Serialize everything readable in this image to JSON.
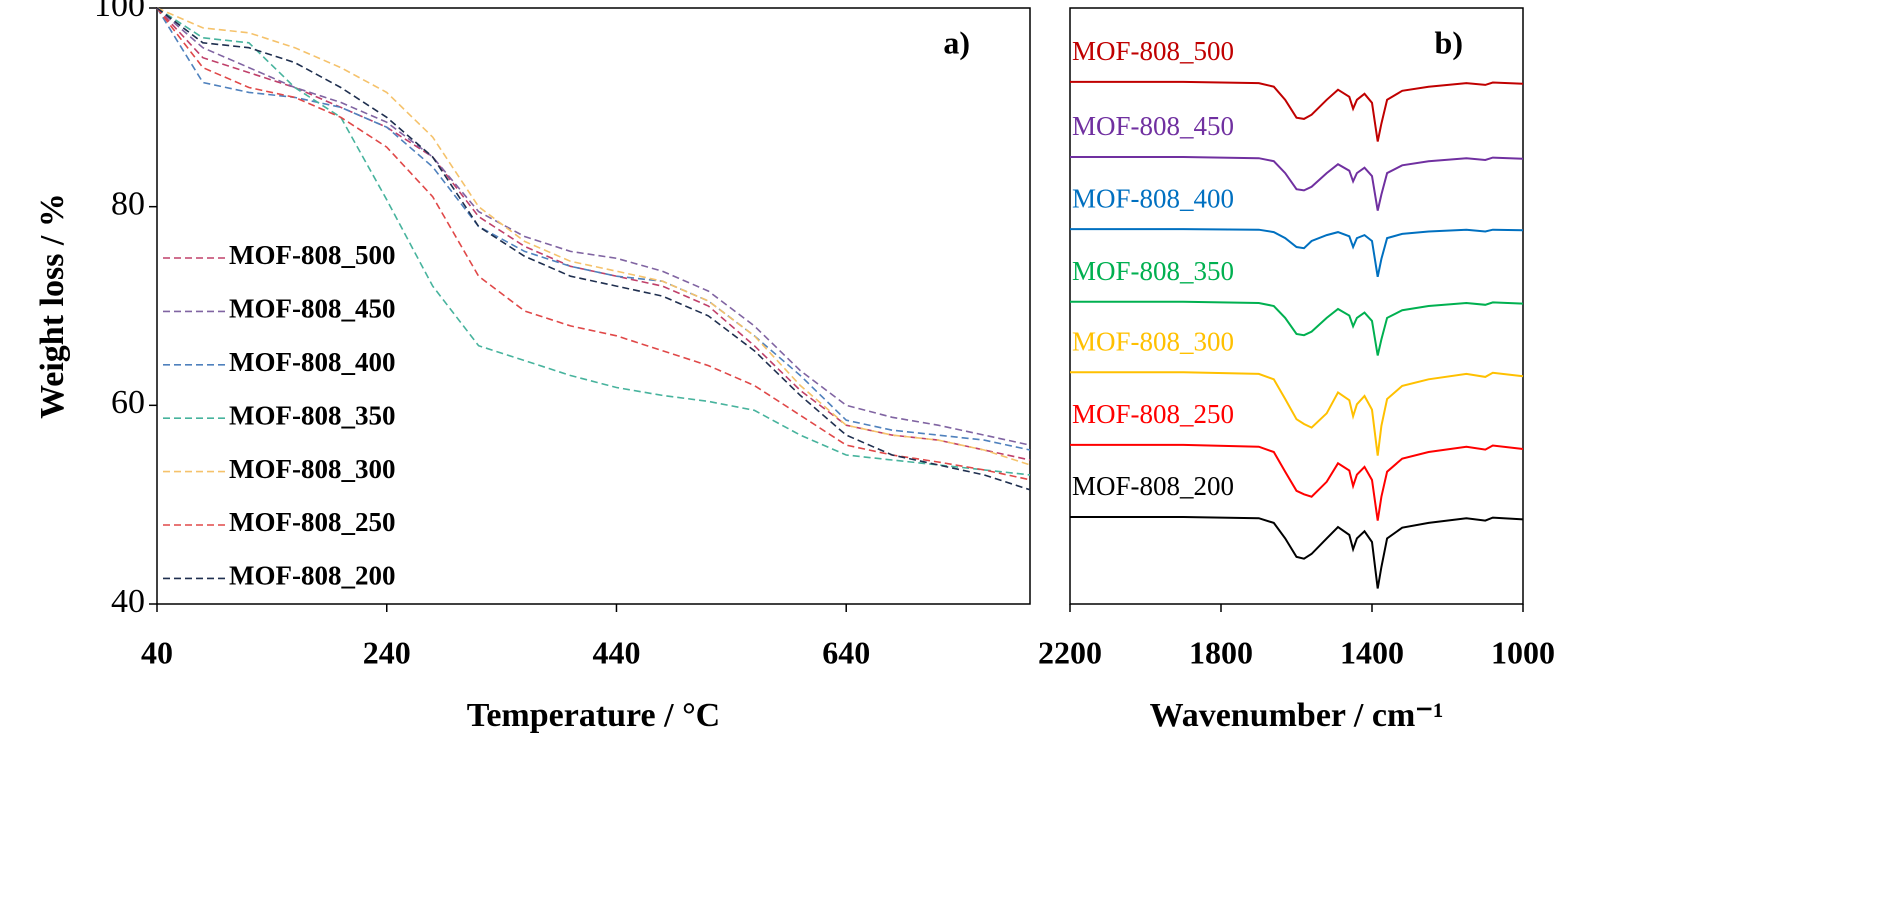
{
  "chart_data": [
    {
      "type": "line",
      "panel_label": "a)",
      "xlabel": "Temperature / °C",
      "ylabel": "Weight loss / %",
      "line_style": "dashed",
      "legend": "left",
      "xlim": [
        40,
        800
      ],
      "xticks": [
        40,
        240,
        440,
        640
      ],
      "ylim": [
        40,
        100
      ],
      "yticks": [
        40,
        60,
        80,
        100
      ],
      "x": [
        40,
        80,
        120,
        160,
        200,
        240,
        280,
        320,
        360,
        400,
        440,
        480,
        520,
        560,
        600,
        640,
        680,
        720,
        760,
        800
      ],
      "series": [
        {
          "name": "MOF-808_500",
          "color": "#c0406a",
          "values": [
            100,
            95,
            93.5,
            92,
            90,
            88,
            85,
            79,
            76,
            74,
            73,
            72,
            70,
            66,
            61.5,
            58,
            57,
            56.5,
            55.5,
            54.5
          ]
        },
        {
          "name": "MOF-808_450",
          "color": "#8064a2",
          "values": [
            100,
            96,
            94,
            92,
            90.5,
            88.5,
            85,
            79.5,
            77,
            75.5,
            74.8,
            73.5,
            71.5,
            68,
            63.5,
            60,
            58.8,
            58,
            57,
            56
          ]
        },
        {
          "name": "MOF-808_400",
          "color": "#4f81bd",
          "values": [
            100,
            92.5,
            91.5,
            91,
            90,
            88,
            84,
            78,
            75.5,
            74,
            73,
            72.5,
            70.5,
            67,
            63,
            58.5,
            57.5,
            57,
            56.5,
            55.5
          ]
        },
        {
          "name": "MOF-808_350",
          "color": "#47b39d",
          "values": [
            100,
            97,
            96.5,
            92,
            89,
            80.7,
            72,
            66,
            64.5,
            63,
            61.8,
            61,
            60.4,
            59.5,
            57,
            55,
            54.5,
            54,
            53.5,
            53
          ]
        },
        {
          "name": "MOF-808_300",
          "color": "#f5c26b",
          "values": [
            100,
            98,
            97.5,
            96,
            94,
            91.5,
            87,
            80,
            76.5,
            74.5,
            73.5,
            72.5,
            70.5,
            67,
            62,
            58,
            57,
            56.5,
            55.5,
            54
          ]
        },
        {
          "name": "MOF-808_250",
          "color": "#e04848",
          "values": [
            100,
            94,
            92,
            91,
            89,
            86,
            81,
            73,
            69.5,
            68,
            67,
            65.5,
            64,
            62,
            59,
            56,
            55,
            54.3,
            53.5,
            52.5
          ]
        },
        {
          "name": "MOF-808_200",
          "color": "#1f2f4f",
          "values": [
            100,
            96.5,
            96,
            94.5,
            92,
            89,
            85,
            78,
            75,
            73,
            72,
            71,
            69,
            65.5,
            61,
            57,
            55,
            54,
            53,
            51.5
          ]
        }
      ]
    },
    {
      "type": "line",
      "panel_label": "b)",
      "xlabel": "Wavenumber / cm⁻¹",
      "line_style": "solid",
      "legend": "inline",
      "xlim": [
        2200,
        1000
      ],
      "xticks": [
        2200,
        1800,
        1400,
        1000
      ],
      "ylim": [
        0,
        100
      ],
      "x": [
        2200,
        1900,
        1700,
        1660,
        1630,
        1600,
        1580,
        1560,
        1520,
        1490,
        1460,
        1450,
        1440,
        1420,
        1400,
        1385,
        1375,
        1360,
        1320,
        1250,
        1150,
        1100,
        1080,
        1000
      ],
      "series": [
        {
          "name": "MOF-808_500",
          "color": "#c00000",
          "values": [
            87.6,
            87.6,
            87.4,
            86.8,
            84.6,
            81.6,
            81.4,
            82.1,
            84.6,
            86.3,
            85.1,
            83.1,
            84.6,
            85.6,
            84.1,
            77.6,
            80.6,
            84.6,
            86.1,
            86.8,
            87.4,
            87.1,
            87.5,
            87.3
          ]
        },
        {
          "name": "MOF-808_450",
          "color": "#7030a0",
          "values": [
            75,
            75,
            74.8,
            74.3,
            72.3,
            69.6,
            69.4,
            70,
            72.3,
            73.8,
            72.7,
            70.9,
            72.3,
            73.2,
            71.8,
            66,
            68.7,
            72.3,
            73.6,
            74.3,
            74.8,
            74.5,
            74.9,
            74.7
          ]
        },
        {
          "name": "MOF-808_400",
          "color": "#0070c0",
          "values": [
            62.9,
            62.9,
            62.8,
            62.4,
            61.4,
            59.9,
            59.7,
            60.9,
            61.9,
            62.4,
            61.7,
            59.9,
            61.4,
            61.9,
            60.9,
            54.9,
            57.9,
            61.4,
            62.1,
            62.5,
            62.8,
            62.5,
            62.8,
            62.7
          ]
        },
        {
          "name": "MOF-808_350",
          "color": "#00b050",
          "values": [
            50.7,
            50.7,
            50.5,
            50,
            48,
            45.3,
            45.1,
            45.7,
            48,
            49.5,
            48.4,
            46.6,
            48,
            48.9,
            47.5,
            41.7,
            44.4,
            48,
            49.3,
            50,
            50.5,
            50.2,
            50.6,
            50.4
          ]
        },
        {
          "name": "MOF-808_300",
          "color": "#ffc000",
          "values": [
            38.9,
            38.9,
            38.6,
            37.7,
            34.4,
            31,
            30.2,
            29.6,
            32,
            35.5,
            34.2,
            31.5,
            33.5,
            34.9,
            32.6,
            24.9,
            29.9,
            34.4,
            36.6,
            37.7,
            38.6,
            38.1,
            38.8,
            38.2
          ]
        },
        {
          "name": "MOF-808_250",
          "color": "#ff0000",
          "values": [
            26.7,
            26.7,
            26.4,
            25.5,
            22.2,
            19,
            18.4,
            18,
            20.5,
            23.6,
            22.4,
            19.8,
            21.7,
            23,
            20.8,
            14,
            18,
            22.2,
            24.4,
            25.5,
            26.4,
            25.9,
            26.6,
            26
          ]
        },
        {
          "name": "MOF-808_200",
          "color": "#000000",
          "values": [
            14.6,
            14.6,
            14.4,
            13.6,
            11,
            7.9,
            7.6,
            8.4,
            11,
            12.9,
            11.6,
            9.2,
            11,
            12.2,
            10.4,
            2.6,
            6.2,
            11,
            12.8,
            13.6,
            14.4,
            14,
            14.5,
            14.2
          ]
        }
      ]
    }
  ]
}
